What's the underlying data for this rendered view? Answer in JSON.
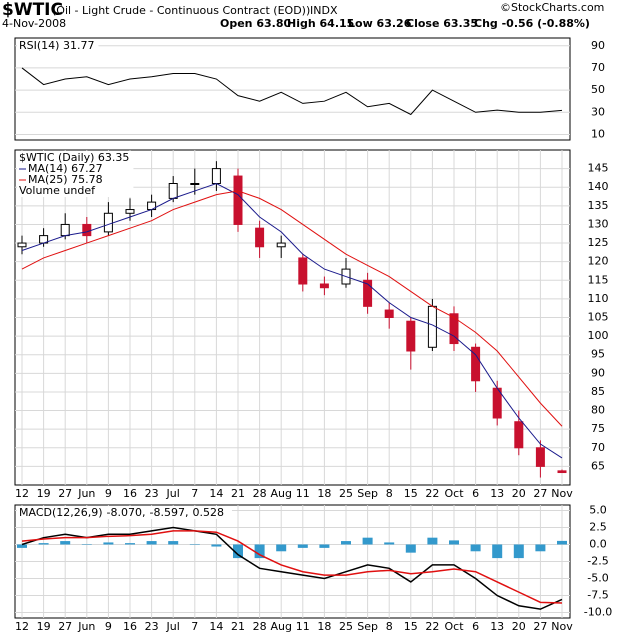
{
  "header": {
    "symbol": "$WTIC",
    "name": "(Oil - Light Crude - Continuous Contract (EOD))",
    "exchange": "INDX",
    "date": "4-Nov-2008",
    "quote": [
      "Open 63.80",
      "High 64.15",
      "Low 63.26",
      "Close 63.35",
      "Chg -0.56 (-0.88%)"
    ],
    "copyright": "©StockCharts.com"
  },
  "chart_data": [
    {
      "type": "line",
      "legend": "RSI(14) 31.77",
      "ylim": [
        5,
        97
      ],
      "yticks": [
        10,
        30,
        50,
        70,
        90
      ],
      "grid": true,
      "series": [
        {
          "color": "#000000",
          "values": [
            70,
            55,
            60,
            62,
            55,
            60,
            62,
            65,
            65,
            60,
            45,
            40,
            48,
            38,
            40,
            48,
            35,
            38,
            28,
            50,
            40,
            30,
            32,
            30,
            30,
            31.77
          ]
        }
      ]
    },
    {
      "type": "candlestick",
      "legend": "$WTIC (Daily) 63.35",
      "extra_legend": "Volume undef",
      "categories": [
        "12",
        "19",
        "27",
        "Jun",
        "9",
        "16",
        "23",
        "Jul",
        "7",
        "14",
        "21",
        "28",
        "Aug",
        "11",
        "18",
        "25",
        "Sep",
        "8",
        "15",
        "22",
        "Oct",
        "6",
        "13",
        "20",
        "27",
        "Nov"
      ],
      "open": [
        124,
        125,
        127,
        130,
        128,
        133,
        134,
        137,
        141,
        141,
        143,
        129,
        124,
        121,
        114,
        114,
        115,
        107,
        104,
        97,
        106,
        97,
        86,
        77,
        70,
        63.8
      ],
      "high": [
        127,
        129,
        133,
        132,
        136,
        137,
        138,
        143,
        145,
        147,
        145,
        131,
        127,
        122,
        116,
        121,
        117,
        109,
        105,
        110,
        108,
        98,
        88,
        80,
        72,
        64.15
      ],
      "low": [
        122,
        124,
        126,
        125,
        127,
        131,
        132,
        136,
        138,
        139,
        128,
        121,
        121,
        112,
        111,
        113,
        106,
        102,
        91,
        96,
        96,
        85,
        76,
        68,
        62,
        63.26
      ],
      "close": [
        125,
        127,
        130,
        127,
        133,
        134,
        136,
        141,
        141,
        145,
        130,
        124,
        125,
        114,
        113,
        118,
        108,
        105,
        96,
        108,
        98,
        88,
        78,
        70,
        65,
        63.35
      ],
      "series": [
        {
          "name": "MA(14) 67.27",
          "color": "#1a1a8c",
          "values": [
            123,
            125,
            127,
            128,
            130,
            132,
            134,
            137,
            139,
            141,
            138,
            132,
            128,
            122,
            118,
            116,
            114,
            109,
            105,
            103,
            100,
            95,
            86,
            78,
            71,
            67.27
          ]
        },
        {
          "name": "MA(25) 75.78",
          "color": "#e01010",
          "values": [
            118,
            121,
            123,
            125,
            127,
            129,
            131,
            134,
            136,
            138,
            139,
            137,
            134,
            130,
            126,
            122,
            119,
            116,
            112,
            108,
            105,
            101,
            96,
            89,
            82,
            75.78
          ]
        }
      ],
      "ylim": [
        60,
        150
      ],
      "yticks": [
        65,
        70,
        75,
        80,
        85,
        90,
        95,
        100,
        105,
        110,
        115,
        120,
        125,
        130,
        135,
        140,
        145
      ],
      "grid": true
    },
    {
      "type": "line",
      "legend": [
        {
          "text": "MACD(12,26,9)",
          "color": "#000000"
        },
        {
          "text": "-8.070,",
          "color": "#000000"
        },
        {
          "text": "-8.597,",
          "color": "#e01010"
        },
        {
          "text": "0.528",
          "color": "#3399cc"
        }
      ],
      "categories": [
        "12",
        "19",
        "27",
        "Jun",
        "9",
        "16",
        "23",
        "Jul",
        "7",
        "14",
        "21",
        "28",
        "Aug",
        "11",
        "18",
        "25",
        "Sep",
        "8",
        "15",
        "22",
        "Oct",
        "6",
        "13",
        "20",
        "27",
        "Nov"
      ],
      "series": [
        {
          "type": "bar",
          "color": "#3399cc",
          "values": [
            -0.5,
            0.2,
            0.5,
            0,
            0.3,
            0.2,
            0.5,
            0.5,
            0,
            -0.3,
            -2,
            -2,
            -1,
            -0.5,
            -0.5,
            0.5,
            1,
            0.3,
            -1.2,
            1,
            0.6,
            -1,
            -2,
            -2,
            -1,
            0.528
          ]
        },
        {
          "color": "#000000",
          "values": [
            0,
            1,
            1.5,
            1,
            1.5,
            1.5,
            2,
            2.5,
            2,
            1.5,
            -1.5,
            -3.5,
            -4,
            -4.5,
            -5,
            -4,
            -3,
            -3.5,
            -5.5,
            -3,
            -3,
            -5,
            -7.5,
            -9,
            -9.5,
            -8.07
          ]
        },
        {
          "color": "#e01010",
          "values": [
            0.5,
            0.8,
            1,
            1,
            1.2,
            1.3,
            1.5,
            2,
            2,
            1.8,
            0.5,
            -1.5,
            -3,
            -4,
            -4.5,
            -4.5,
            -4,
            -3.8,
            -4.3,
            -4,
            -3.6,
            -4,
            -5.5,
            -7,
            -8.5,
            -8.597
          ]
        }
      ],
      "ylim": [
        -10.8,
        5.8
      ],
      "yticks": [
        {
          "value": 5,
          "label": "5.0"
        },
        2.5,
        {
          "value": 0,
          "label": "0.0"
        },
        -2.5,
        {
          "value": -5,
          "label": "-5.0"
        },
        -7.5,
        {
          "value": -10,
          "label": "-10.0"
        }
      ],
      "grid": true
    }
  ]
}
